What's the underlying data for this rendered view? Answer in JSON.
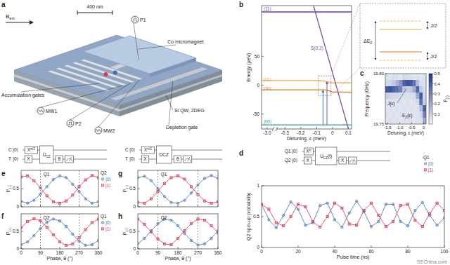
{
  "figure": {
    "panel_labels": [
      "a",
      "b",
      "c",
      "d",
      "e",
      "f",
      "g",
      "h"
    ],
    "watermark": "EEChina.com"
  },
  "device": {
    "field": {
      "t": "B",
      "sub": "ext"
    },
    "scale_bar": "400 nm",
    "labels": {
      "p1": "P1",
      "micromagnet": "Co micromagnet",
      "accumulation": "Accumulation gates",
      "mw1": "MW1",
      "p2": "P2",
      "mw2": "MW2",
      "quantum_well": "Si QW, 2DEG",
      "depletion": "Depletion gate"
    }
  },
  "zoom": {
    "splitting": {
      "t": "ΔE",
      "sub": "Z"
    },
    "exchange_upper": "J/2",
    "exchange_lower": "J/2"
  },
  "circuits": [
    {
      "rows": [
        {
          "label": "Q1",
          "ket": "|0⟩",
          "gates": [
            {
              "t": "X",
              "sup": "π"
            }
          ],
          "post": []
        },
        {
          "label": "Q2",
          "ket": "|0⟩",
          "gates": [
            {
              "t": "X"
            }
          ],
          "post": [
            {
              "t": "X"
            }
          ]
        }
      ],
      "shared": {
        "t": "U",
        "sub": "CZ",
        "tail": "(t)"
      }
    },
    {
      "rows": [
        {
          "label": "C",
          "ket": "|0⟩",
          "gates": [
            {
              "t": "X",
              "sup": "π/2"
            }
          ],
          "post": []
        },
        {
          "label": "T",
          "ket": "|0⟩",
          "gates": [
            {
              "t": "X"
            }
          ],
          "post": [
            {
              "t": "θ"
            }
          ]
        }
      ],
      "shared": {
        "t": "U",
        "sub": "CZ"
      }
    },
    {
      "rows": [
        {
          "label": "C",
          "ket": "|0⟩",
          "gates": [
            {
              "t": "X",
              "sup": "π/2"
            }
          ],
          "post": []
        },
        {
          "label": "T",
          "ket": "|0⟩",
          "gates": [
            {
              "t": "X"
            }
          ],
          "post": [
            {
              "t": "θ"
            }
          ]
        }
      ],
      "shared": {
        "t": "DCZ"
      }
    }
  ],
  "chart_data": [
    {
      "type": "line",
      "x_label": "Detuning, ε (meV)",
      "y_label": "Energy (μeV)",
      "xlim": [
        -3.05,
        0.12
      ],
      "x_break": [
        -2.95,
        -0.35
      ],
      "xticks": [
        {
          "value": -3,
          "label": "-3.0"
        },
        -0.3,
        -0.2,
        -0.1,
        0,
        0.1
      ],
      "ylim": [
        -76,
        138
      ],
      "yticks": [
        -50,
        0,
        50
      ],
      "series": [
        {
          "name": "|11⟩",
          "color": "#6a3d9a",
          "x": [
            -3.05,
            0.12
          ],
          "values": [
            127,
            127
          ]
        },
        {
          "name": "|01⟩",
          "color": "#f2a541",
          "x": [
            -3.05,
            -0.1,
            -0.05,
            -0.02,
            0,
            0.12
          ],
          "values": [
            8,
            8,
            7,
            5,
            4,
            4
          ]
        },
        {
          "name": "|10⟩",
          "color": "#e07b29",
          "x": [
            -3.05,
            -0.1,
            -0.05,
            -0.02,
            0,
            0.12
          ],
          "values": [
            -8,
            -8,
            -8,
            -10,
            -12,
            -12
          ]
        },
        {
          "name": "|00⟩",
          "color": "#2a9d8f",
          "x": [
            -3.05,
            0.12
          ],
          "values": [
            -69,
            -69
          ]
        },
        {
          "name": "S(0,2)",
          "color": "#7b4fa6",
          "x": [
            -0.12,
            0.1
          ],
          "values": [
            138,
            -76
          ]
        }
      ],
      "transitions": [
        {
          "x": -0.06,
          "from": -69,
          "to": -8,
          "color": "#3b6fb6"
        },
        {
          "x": -0.035,
          "from": -69,
          "to": 7,
          "color": "#7b4fa6"
        }
      ]
    },
    {
      "type": "heatmap",
      "x_label": "Detuning, ε (meV)",
      "y_label": "Frequency (GHz)",
      "xlim": [
        -1.6,
        0.1
      ],
      "xticks": [
        -1.5,
        {
          "value": -1,
          "label": "-1.0"
        },
        -0.5,
        0
      ],
      "ylim": [
        19.75,
        19.8
      ],
      "yticks": [
        {
          "value": 19.8,
          "label": "19.80"
        },
        {
          "value": 19.75,
          "label": "19.75"
        }
      ],
      "cells": [
        [
          0.06,
          0.05,
          0.07,
          0.06,
          0.05,
          0.08,
          0.07,
          0.06,
          0.05,
          0.06,
          0.05,
          0.06
        ],
        [
          0.08,
          0.09,
          0.12,
          0.18,
          0.25,
          0.38,
          0.42,
          0.4,
          0.33,
          0.15,
          0.07,
          0.06
        ],
        [
          0.4,
          0.42,
          0.38,
          0.35,
          0.3,
          0.14,
          0.1,
          0.12,
          0.2,
          0.38,
          0.12,
          0.07
        ],
        [
          0.1,
          0.09,
          0.08,
          0.08,
          0.07,
          0.06,
          0.06,
          0.07,
          0.08,
          0.2,
          0.4,
          0.08
        ],
        [
          0.06,
          0.05,
          0.06,
          0.05,
          0.06,
          0.05,
          0.06,
          0.05,
          0.06,
          0.08,
          0.35,
          0.1
        ],
        [
          0.05,
          0.06,
          0.05,
          0.06,
          0.05,
          0.06,
          0.05,
          0.06,
          0.05,
          0.06,
          0.15,
          0.38
        ],
        [
          0.06,
          0.05,
          0.06,
          0.05,
          0.06,
          0.05,
          0.06,
          0.05,
          0.06,
          0.05,
          0.08,
          0.3
        ],
        [
          0.05,
          0.06,
          0.05,
          0.06,
          0.05,
          0.06,
          0.05,
          0.06,
          0.05,
          0.06,
          0.06,
          0.2
        ]
      ],
      "color_range": [
        0,
        0.5
      ],
      "color_ticks": [
        0.1,
        0.2,
        0.3,
        0.4,
        0.5
      ],
      "color_label": {
        "t": "P",
        "sub": "(↑)"
      },
      "annotations": [
        {
          "t": "J(ε)"
        },
        {
          "t": "E",
          "sub": "Z",
          "tail": "(ε)"
        }
      ]
    },
    {
      "type": "line",
      "marker": "circle",
      "x_label": "Pulse time (ns)",
      "y_label": "Q2 spin-up probability",
      "xlim": [
        0,
        100
      ],
      "xticks": [
        0,
        20,
        40,
        60,
        80,
        100
      ],
      "ylim": [
        0,
        1
      ],
      "yticks": [
        0,
        0.5,
        1
      ],
      "legend": "upper right",
      "legend_title": "Q1",
      "x": [
        0,
        4,
        8,
        12,
        16,
        20,
        24,
        28,
        32,
        36,
        40,
        44,
        48,
        52,
        56,
        60,
        64,
        68,
        72,
        76,
        80,
        84,
        88,
        92,
        96,
        100
      ],
      "series": [
        {
          "name": "|0⟩",
          "color": "#3e6fb0",
          "values": [
            0.7,
            0.45,
            0.32,
            0.52,
            0.74,
            0.62,
            0.36,
            0.4,
            0.68,
            0.72,
            0.45,
            0.33,
            0.56,
            0.75,
            0.58,
            0.34,
            0.42,
            0.7,
            0.7,
            0.42,
            0.35,
            0.6,
            0.73,
            0.52,
            0.36,
            0.48
          ]
        },
        {
          "name": "|1⟩",
          "color": "#d6304a",
          "marker": "square",
          "values": [
            0.7,
            0.62,
            0.4,
            0.35,
            0.5,
            0.7,
            0.66,
            0.42,
            0.33,
            0.5,
            0.72,
            0.64,
            0.38,
            0.36,
            0.6,
            0.72,
            0.52,
            0.34,
            0.42,
            0.68,
            0.7,
            0.44,
            0.34,
            0.55,
            0.72,
            0.6
          ]
        }
      ]
    },
    {
      "type": "line",
      "marker": "circle",
      "y_label": {
        "t": "P",
        "sub": "(↑)"
      },
      "inner_label": "Q1",
      "xlim": [
        0,
        360
      ],
      "xticks": [
        0,
        90,
        180,
        270,
        360
      ],
      "ylim": [
        0,
        1
      ],
      "yticks": [
        0,
        0.5
      ],
      "tick_labels": "y",
      "reference_lines": [
        90,
        270
      ],
      "legend": "right",
      "legend_title": "Q2",
      "x": [
        0,
        30,
        60,
        90,
        120,
        150,
        180,
        210,
        240,
        270,
        300,
        330,
        360
      ],
      "series": [
        {
          "name": "|0⟩",
          "color": "#3e6fb0",
          "values": [
            0.15,
            0.1,
            0.18,
            0.35,
            0.55,
            0.75,
            0.85,
            0.8,
            0.62,
            0.42,
            0.22,
            0.1,
            0.14
          ]
        },
        {
          "name": "|1⟩",
          "color": "#d6304a",
          "marker": "square",
          "values": [
            0.82,
            0.85,
            0.72,
            0.52,
            0.3,
            0.14,
            0.1,
            0.16,
            0.32,
            0.55,
            0.74,
            0.86,
            0.8
          ]
        }
      ]
    },
    {
      "type": "line",
      "marker": "circle",
      "x_label": "Phase, θ (°)",
      "y_label": {
        "t": "P",
        "sub": "(↑)"
      },
      "inner_label": "Q2",
      "xlim": [
        0,
        360
      ],
      "xticks": [
        0,
        90,
        180,
        270,
        360
      ],
      "ylim": [
        0,
        1
      ],
      "yticks": [
        0,
        0.5
      ],
      "reference_lines": [
        90,
        270
      ],
      "legend": "right",
      "legend_title": "Q1",
      "x": [
        0,
        30,
        60,
        90,
        120,
        150,
        180,
        210,
        240,
        270,
        300,
        330,
        360
      ],
      "series": [
        {
          "name": "|0⟩",
          "color": "#3e6fb0",
          "values": [
            0.12,
            0.2,
            0.38,
            0.58,
            0.76,
            0.85,
            0.8,
            0.64,
            0.42,
            0.22,
            0.1,
            0.12,
            0.24
          ]
        },
        {
          "name": "|1⟩",
          "color": "#d6304a",
          "marker": "square",
          "values": [
            0.6,
            0.78,
            0.86,
            0.8,
            0.62,
            0.4,
            0.2,
            0.1,
            0.14,
            0.32,
            0.55,
            0.75,
            0.85
          ]
        }
      ]
    },
    {
      "type": "line",
      "marker": "circle",
      "y_label": {
        "t": "P",
        "sub": "(↑)"
      },
      "inner_label": "Q1",
      "xlim": [
        0,
        360
      ],
      "xticks": [
        0,
        90,
        180,
        270,
        360
      ],
      "ylim": [
        0,
        1
      ],
      "yticks": [
        0,
        0.5
      ],
      "tick_labels": "y",
      "reference_lines": [
        90,
        270
      ],
      "x": [
        0,
        30,
        60,
        90,
        120,
        150,
        180,
        210,
        240,
        270,
        300,
        330,
        360
      ],
      "series": [
        {
          "color": "#3e6fb0",
          "values": [
            0.8,
            0.84,
            0.72,
            0.5,
            0.28,
            0.12,
            0.1,
            0.18,
            0.38,
            0.6,
            0.78,
            0.86,
            0.78
          ]
        },
        {
          "color": "#d6304a",
          "marker": "square",
          "values": [
            0.12,
            0.1,
            0.22,
            0.42,
            0.64,
            0.8,
            0.85,
            0.76,
            0.55,
            0.34,
            0.16,
            0.1,
            0.14
          ]
        }
      ]
    },
    {
      "type": "line",
      "marker": "circle",
      "x_label": "Phase, θ (°)",
      "y_label": {
        "t": "P",
        "sub": "(↑)"
      },
      "inner_label": "Q2",
      "xlim": [
        0,
        360
      ],
      "xticks": [
        0,
        90,
        180,
        270,
        360
      ],
      "ylim": [
        0,
        1
      ],
      "yticks": [
        0,
        0.5
      ],
      "reference_lines": [
        90,
        270
      ],
      "x": [
        0,
        30,
        60,
        90,
        120,
        150,
        180,
        210,
        240,
        270,
        300,
        330,
        360
      ],
      "series": [
        {
          "color": "#3e6fb0",
          "values": [
            0.15,
            0.3,
            0.52,
            0.72,
            0.85,
            0.82,
            0.66,
            0.44,
            0.24,
            0.11,
            0.14,
            0.3,
            0.52
          ]
        },
        {
          "color": "#d6304a",
          "marker": "square",
          "values": [
            0.85,
            0.7,
            0.48,
            0.28,
            0.14,
            0.12,
            0.3,
            0.52,
            0.72,
            0.85,
            0.82,
            0.66,
            0.46
          ]
        }
      ]
    }
  ]
}
